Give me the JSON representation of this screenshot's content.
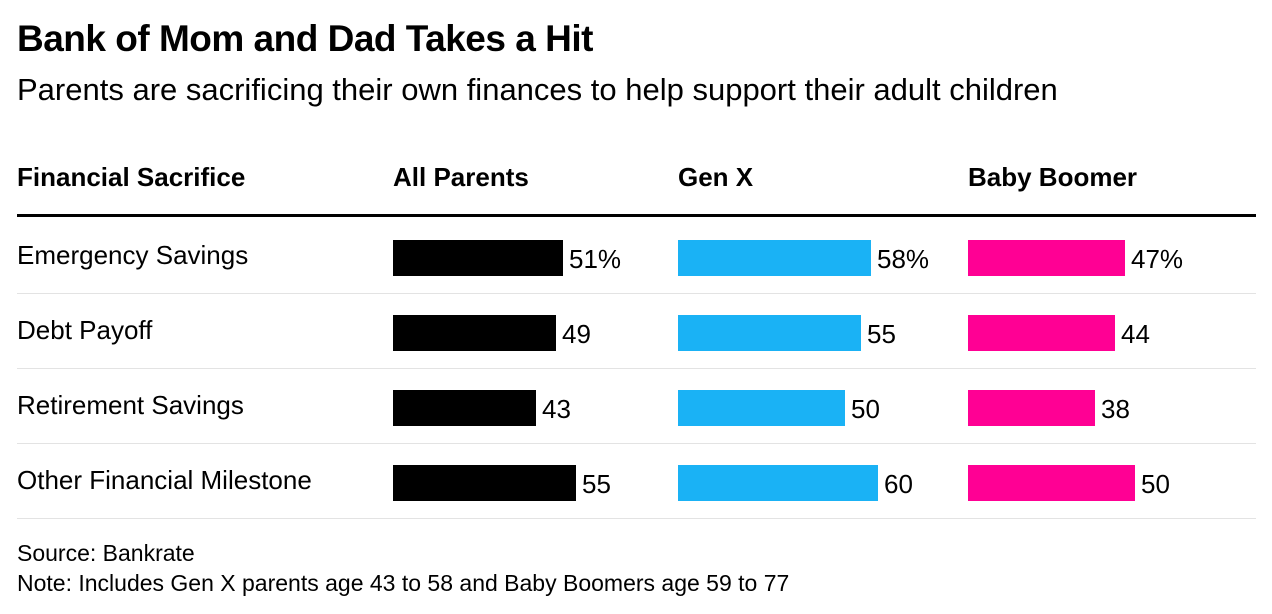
{
  "header": {
    "title": "Bank of Mom and Dad Takes a Hit",
    "subtitle": "Parents are sacrificing their own finances to help support their adult children"
  },
  "footer": {
    "source": "Source: Bankrate",
    "note": "Note: Includes Gen X parents age 43 to 58 and Baby Boomers age 59 to 77"
  },
  "chart_data": {
    "type": "bar",
    "orientation": "horizontal",
    "layout": "small-multiples-table",
    "category_header": "Financial Sacrifice",
    "categories": [
      "Emergency Savings",
      "Debt Payoff",
      "Retirement Savings",
      "Other Financial Milestone"
    ],
    "series": [
      {
        "name": "All Parents",
        "color": "#000000",
        "values": [
          51,
          49,
          43,
          55
        ],
        "labels": [
          "51%",
          "49",
          "43",
          "55"
        ]
      },
      {
        "name": "Gen X",
        "color": "#1ab2f5",
        "values": [
          58,
          55,
          50,
          60
        ],
        "labels": [
          "58%",
          "55",
          "50",
          "60"
        ]
      },
      {
        "name": "Baby Boomer",
        "color": "#ff0094",
        "values": [
          47,
          44,
          38,
          50
        ],
        "labels": [
          "47%",
          "44",
          "38",
          "50"
        ]
      }
    ],
    "unit": "%",
    "xlim": [
      0,
      100
    ]
  }
}
